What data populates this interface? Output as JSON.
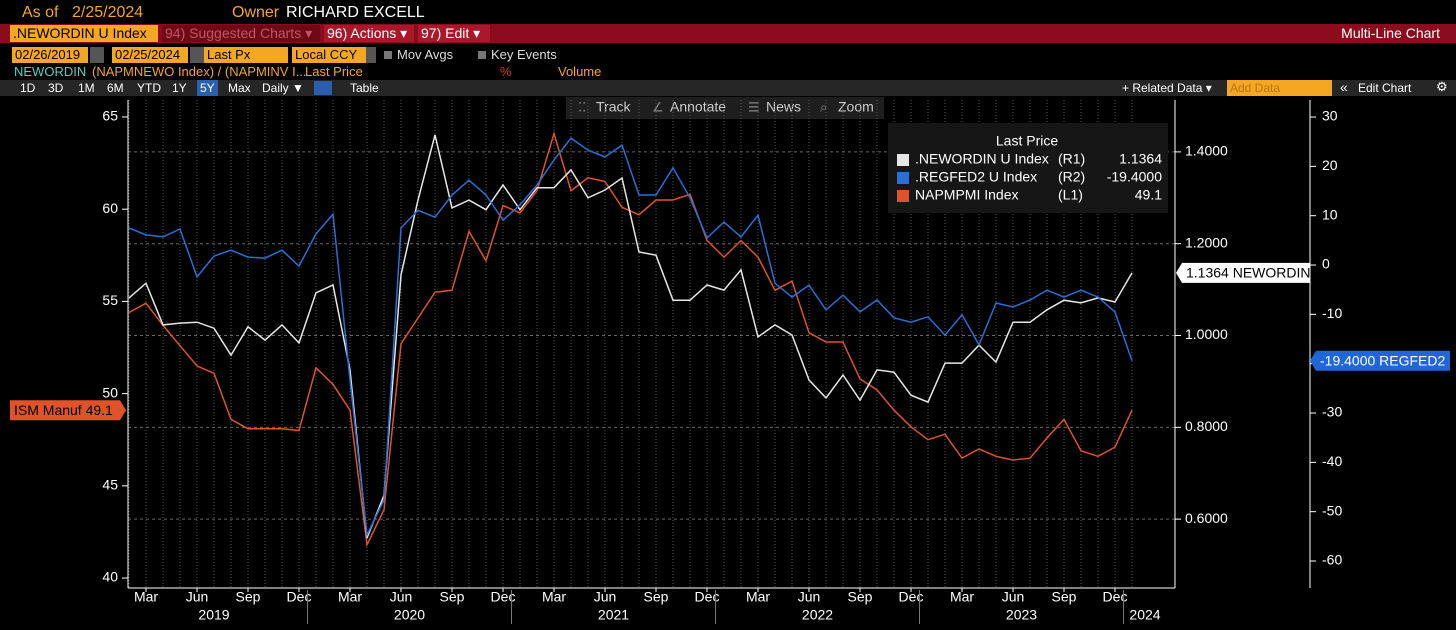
{
  "header": {
    "as_of_label": "As of",
    "as_of": "2/25/2024",
    "owner_label": "Owner",
    "owner": "RICHARD EXCELL",
    "security": ".NEWORDIN U Index",
    "menus": [
      "94) Suggested Charts ▾",
      "96) Actions ▾",
      "97) Edit ▾"
    ],
    "view": "Multi-Line Chart",
    "start_date": "02/26/2019",
    "end_date": "02/25/2024",
    "price_field": "Last Px",
    "currency": "Local CCY",
    "options": [
      "Mov Avgs",
      "Key Events"
    ],
    "ticker": "NEWORDIN",
    "formula": "(NAPMNEWO Index) / (NAPMINV I...",
    "field": "Last Price",
    "pct": "%",
    "volume": "Volume",
    "periods": [
      "1D",
      "3D",
      "1M",
      "6M",
      "YTD",
      "1Y",
      "5Y",
      "Max"
    ],
    "frequency": "Daily ▼",
    "table": "Table",
    "related": "+ Related Data ▾",
    "add_data": "Add Data",
    "collapse": "«",
    "edit_chart": "Edit Chart"
  },
  "toolbar": {
    "items": [
      "Track",
      "Annotate",
      "News",
      "Zoom"
    ]
  },
  "chart_data": {
    "type": "line",
    "legend_title": "Last Price",
    "grid": true,
    "x": [
      "2019-02",
      "2019-03",
      "2019-04",
      "2019-05",
      "2019-06",
      "2019-07",
      "2019-08",
      "2019-09",
      "2019-10",
      "2019-11",
      "2019-12",
      "2020-01",
      "2020-02",
      "2020-03",
      "2020-04",
      "2020-05",
      "2020-06",
      "2020-07",
      "2020-08",
      "2020-09",
      "2020-10",
      "2020-11",
      "2020-12",
      "2021-01",
      "2021-02",
      "2021-03",
      "2021-04",
      "2021-05",
      "2021-06",
      "2021-07",
      "2021-08",
      "2021-09",
      "2021-10",
      "2021-11",
      "2021-12",
      "2022-01",
      "2022-02",
      "2022-03",
      "2022-04",
      "2022-05",
      "2022-06",
      "2022-07",
      "2022-08",
      "2022-09",
      "2022-10",
      "2022-11",
      "2022-12",
      "2023-01",
      "2023-02",
      "2023-03",
      "2023-04",
      "2023-05",
      "2023-06",
      "2023-07",
      "2023-08",
      "2023-09",
      "2023-10",
      "2023-11",
      "2023-12",
      "2024-01"
    ],
    "xticks": [
      {
        "value": "2019-03",
        "label": "Mar"
      },
      {
        "value": "2019-06",
        "label": "Jun"
      },
      {
        "value": "2019-09",
        "label": "Sep"
      },
      {
        "value": "2019-12",
        "label": "Dec"
      },
      {
        "value": "2020-03",
        "label": "Mar"
      },
      {
        "value": "2020-06",
        "label": "Jun"
      },
      {
        "value": "2020-09",
        "label": "Sep"
      },
      {
        "value": "2020-12",
        "label": "Dec"
      },
      {
        "value": "2021-03",
        "label": "Mar"
      },
      {
        "value": "2021-06",
        "label": "Jun"
      },
      {
        "value": "2021-09",
        "label": "Sep"
      },
      {
        "value": "2021-12",
        "label": "Dec"
      },
      {
        "value": "2022-03",
        "label": "Mar"
      },
      {
        "value": "2022-06",
        "label": "Jun"
      },
      {
        "value": "2022-09",
        "label": "Sep"
      },
      {
        "value": "2022-12",
        "label": "Dec"
      },
      {
        "value": "2023-03",
        "label": "Mar"
      },
      {
        "value": "2023-06",
        "label": "Jun"
      },
      {
        "value": "2023-09",
        "label": "Sep"
      },
      {
        "value": "2023-12",
        "label": "Dec"
      }
    ],
    "years": [
      "2019",
      "2020",
      "2021",
      "2022",
      "2023",
      "2024"
    ],
    "ylim": [
      39.46,
      65.92
    ],
    "yticks": [
      40,
      45,
      50,
      55,
      60,
      65
    ],
    "y2lim": [
      0.45,
      1.513
    ],
    "y2ticks": [
      {
        "value": 0.6,
        "label": "0.6000"
      },
      {
        "value": 0.8,
        "label": "0.8000"
      },
      {
        "value": 1.0,
        "label": "1.0000"
      },
      {
        "value": 1.2,
        "label": "1.2000"
      },
      {
        "value": 1.4,
        "label": "1.4000"
      }
    ],
    "y3lim": [
      -65.47,
      33.45
    ],
    "y3ticks": [
      -60,
      -50,
      -40,
      -30,
      -20,
      -10,
      0,
      10,
      20,
      30
    ],
    "series": [
      {
        "name": ".NEWORDIN U Index",
        "axis_label": "(R1)",
        "axis": "y2",
        "color": "#e6e6e6",
        "last_label": "1.1364",
        "tag": "1.1364 NEWORDIN",
        "values": [
          1.082,
          1.114,
          1.023,
          1.027,
          1.029,
          1.016,
          0.957,
          1.019,
          0.99,
          1.023,
          0.984,
          1.093,
          1.11,
          0.925,
          0.559,
          0.652,
          1.132,
          1.295,
          1.437,
          1.278,
          1.295,
          1.274,
          1.328,
          1.274,
          1.322,
          1.322,
          1.361,
          1.3,
          1.317,
          1.343,
          1.182,
          1.175,
          1.077,
          1.077,
          1.11,
          1.099,
          1.143,
          0.997,
          1.023,
          1.001,
          0.903,
          0.864,
          0.914,
          0.859,
          0.925,
          0.92,
          0.87,
          0.855,
          0.94,
          0.94,
          0.979,
          0.942,
          1.029,
          1.029,
          1.056,
          1.077,
          1.071,
          1.082,
          1.073,
          1.1364
        ]
      },
      {
        "name": ".REGFED2 U Index",
        "axis_label": "(R2)",
        "axis": "y3",
        "color": "#2a6fd6",
        "last_label": "-19.4000",
        "tag": "-19.4000 REGFED2",
        "values": [
          7.5,
          6.1,
          5.7,
          7.3,
          -2.4,
          1.8,
          3.0,
          1.6,
          1.4,
          3.0,
          -0.2,
          6.3,
          10.3,
          -23.3,
          -54.7,
          -47.6,
          7.5,
          11.1,
          9.7,
          14.2,
          17.2,
          14.2,
          9.1,
          12.2,
          16.2,
          21.3,
          25.7,
          23.3,
          21.9,
          24.3,
          14.2,
          14.2,
          19.7,
          13.6,
          5.5,
          8.7,
          5.7,
          10.1,
          -3.7,
          -6.5,
          -4.1,
          -9.1,
          -6.1,
          -9.5,
          -7.1,
          -10.7,
          -11.6,
          -10.5,
          -14.2,
          -10.1,
          -16.2,
          -7.7,
          -8.5,
          -7.1,
          -5.1,
          -6.5,
          -5.1,
          -6.5,
          -9.5,
          -19.4
        ]
      },
      {
        "name": "NAPMPMI Index",
        "axis_label": "(L1)",
        "axis": "y",
        "color": "#e0532a",
        "last_label": "49.1",
        "tag": "ISM Manuf 49.1",
        "values": [
          54.4,
          54.9,
          53.7,
          52.6,
          51.5,
          51.1,
          48.6,
          48.1,
          48.1,
          48.1,
          48.0,
          51.4,
          50.5,
          49.1,
          41.8,
          43.7,
          52.7,
          54.1,
          55.5,
          55.6,
          58.8,
          57.2,
          60.2,
          59.8,
          61.0,
          64.1,
          61.0,
          61.7,
          61.5,
          60.1,
          59.7,
          60.5,
          60.5,
          60.8,
          58.3,
          57.4,
          58.3,
          57.4,
          55.6,
          56.1,
          53.3,
          52.8,
          52.8,
          50.8,
          50.2,
          49.1,
          48.2,
          47.5,
          47.8,
          46.5,
          47.0,
          46.6,
          46.4,
          46.5,
          47.6,
          48.6,
          46.9,
          46.6,
          47.1,
          49.1
        ]
      }
    ]
  }
}
